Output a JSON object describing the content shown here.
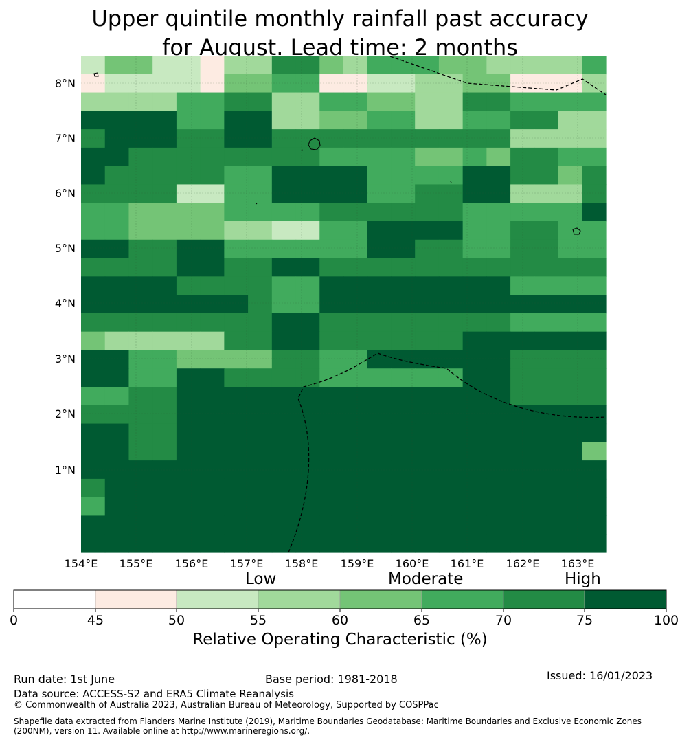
{
  "title": {
    "line1": "Upper quintile monthly rainfall past accuracy",
    "line2": "for August. Lead time: 2 months"
  },
  "map": {
    "lat_labels": [
      "8°N",
      "7°N",
      "6°N",
      "5°N",
      "4°N",
      "3°N",
      "2°N",
      "1°N"
    ],
    "lon_labels": [
      "154°E",
      "155°E",
      "156°E",
      "157°E",
      "158°E",
      "159°E",
      "160°E",
      "161°E",
      "162°E",
      "163°E"
    ],
    "legend_classes": [
      {
        "range": "0-45",
        "color": "#ffffff"
      },
      {
        "range": "45-50",
        "color": "#fdebe2"
      },
      {
        "range": "50-55",
        "color": "#c8e9c1"
      },
      {
        "range": "55-60",
        "color": "#a1d99b"
      },
      {
        "range": "60-65",
        "color": "#74c476"
      },
      {
        "range": "65-70",
        "color": "#41ab5d"
      },
      {
        "range": "70-75",
        "color": "#238b45"
      },
      {
        "range": "75-100",
        "color": "#005a32"
      }
    ],
    "grid_rows": [
      "2442213366435554433335",
      "1222214455112233441113",
      "3333556633554433665555",
      "7777557733445533556633",
      "6777667766666666663333",
      "7766666666555544546655",
      "7666665577775555776646",
      "6666225577775566773336",
      "5544445555666666555557",
      "5544443322557777556655",
      "7766775555557766556655",
      "6666776677666666666666",
      "7777666655777777775555",
      "7777777655777777777777",
      "6666666677666666665555",
      "4333336677666666777777",
      "7755444466557777776666",
      "7755776666555555776666",
      "5566777777777777776666",
      "6666777777777777777777",
      "7766777777777777777777",
      "7766777777777777777774",
      "7777777777777777777777",
      "6777777777777777777777",
      "5777777777777777777777",
      "7777777777777777777777",
      "7777777777777777777777"
    ]
  },
  "colorbar": {
    "labels": [
      "Low",
      "Moderate",
      "High"
    ],
    "ticks": [
      "0",
      "45",
      "50",
      "55",
      "60",
      "65",
      "70",
      "75",
      "100"
    ],
    "title": "Relative Operating Characteristic (%)"
  },
  "footer": {
    "run_date": "Run date: 1st June",
    "base_period": "Base period: 1981-2018",
    "issued": "Issued: 16/01/2023",
    "data_source": "Data source: ACCESS-S2 and ERA5 Climate Reanalysis",
    "copyright": "© Commonwealth of Australia 2023, Australian Bureau of Meteorology, Supported by COSPPac",
    "shapefile_line1": "Shapefile data extracted from Flanders Marine Institute (2019), Maritime Boundaries Geodatabase: Maritime Boundaries and Exclusive Economic Zones",
    "shapefile_line2": "(200NM), version 11. Available online at http://www.marineregions.org/."
  }
}
